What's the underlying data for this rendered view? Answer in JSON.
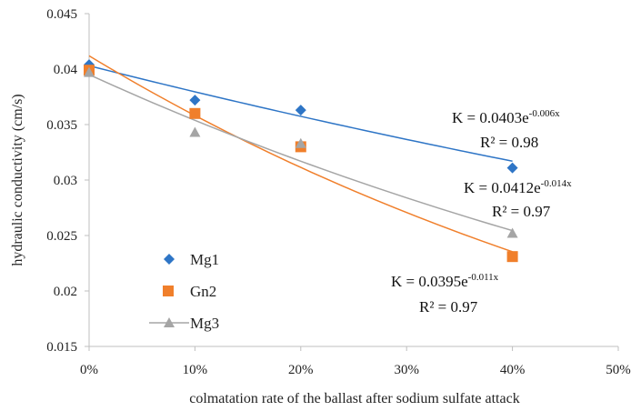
{
  "chart_data": {
    "type": "scatter",
    "title": "",
    "xlabel": "colmatation rate of the ballast after sodium sulfate attack",
    "ylabel": "hydraulic conductivity (cm/s)",
    "xlim": [
      0,
      50
    ],
    "ylim": [
      0.015,
      0.045
    ],
    "x_ticks": [
      "0%",
      "10%",
      "20%",
      "30%",
      "40%",
      "50%"
    ],
    "y_ticks": [
      "0.015",
      "0.02",
      "0.025",
      "0.03",
      "0.035",
      "0.04",
      "0.045"
    ],
    "x_tick_values": [
      0,
      10,
      20,
      30,
      40,
      50
    ],
    "y_tick_values": [
      0.015,
      0.02,
      0.025,
      0.03,
      0.035,
      0.04,
      0.045
    ],
    "grid": false,
    "legend_position": "bottom-left",
    "x": [
      0,
      10,
      20,
      40
    ],
    "series": [
      {
        "name": "Mg1",
        "marker": "diamond",
        "color": "#2e75c6",
        "trend_color": "#2e75c6",
        "values": [
          0.0404,
          0.0372,
          0.0363,
          0.0311
        ],
        "trend": {
          "a": 0.0403,
          "b": -0.006
        },
        "equation": {
          "prefix": "K = 0.0403e",
          "exponent": "-0.006x"
        },
        "r2": "R² = 0.98"
      },
      {
        "name": "Gn2",
        "marker": "square",
        "color": "#f07f2b",
        "trend_color": "#f07f2b",
        "values": [
          0.0399,
          0.036,
          0.033,
          0.0231
        ],
        "trend": {
          "a": 0.0412,
          "b": -0.014
        },
        "equation": {
          "prefix": "K = 0.0412e",
          "exponent": "-0.014x"
        },
        "r2": "R² = 0.97"
      },
      {
        "name": "Mg3",
        "marker": "triangle",
        "color": "#a5a5a5",
        "trend_color": "#a5a5a5",
        "values": [
          0.0397,
          0.0343,
          0.0333,
          0.0252
        ],
        "trend": {
          "a": 0.0395,
          "b": -0.011
        },
        "equation": {
          "prefix": "K = 0.0395e",
          "exponent": "-0.011x"
        },
        "r2": "R² = 0.97"
      }
    ]
  }
}
